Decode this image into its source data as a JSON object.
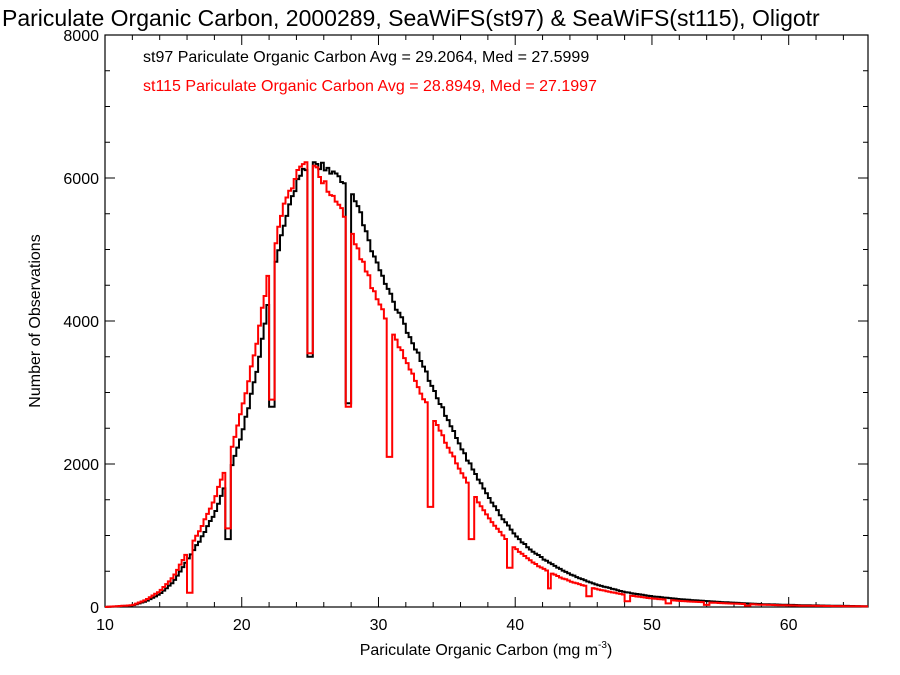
{
  "chart_data": {
    "type": "line",
    "title": "Pariculate Organic Carbon, 2000289, SeaWiFS(st97) & SeaWiFS(st115), Oligotr",
    "xlabel_main": "Pariculate Organic Carbon (mg m",
    "xlabel_exp": "-3",
    "xlabel_close": ")",
    "ylabel": "Number of Observations",
    "xlim": [
      10,
      65.8
    ],
    "ylim": [
      0,
      8000
    ],
    "x_ticks": [
      "10",
      "20",
      "30",
      "40",
      "50",
      "60"
    ],
    "y_ticks": [
      "0",
      "2000",
      "4000",
      "6000",
      "8000"
    ],
    "grid": false,
    "series": [
      {
        "name": "st97",
        "color": "#000000",
        "label": "st97 Pariculate Organic Carbon Avg = 29.2064, Med = 27.5999",
        "x": [
          10.0,
          12.0,
          13.0,
          14.0,
          15.0,
          16.0,
          17.0,
          18.0,
          19.0,
          20.0,
          21.0,
          22.0,
          23.0,
          24.0,
          25.0,
          25.5,
          26.0,
          26.5,
          27.0,
          27.5,
          28.0,
          28.5,
          29.0,
          29.5,
          30.0,
          31.0,
          32.0,
          33.0,
          34.0,
          35.0,
          36.0,
          37.0,
          38.0,
          39.0,
          40.0,
          41.0,
          42.0,
          43.0,
          44.0,
          45.0,
          46.0,
          47.0,
          48.0,
          50.0,
          52.0,
          55.0,
          58.0,
          61.0,
          65.8
        ],
        "y": [
          0,
          20,
          80,
          180,
          350,
          650,
          950,
          1300,
          1800,
          2400,
          3200,
          4300,
          5300,
          5900,
          6250,
          6200,
          6150,
          6100,
          6050,
          5950,
          5800,
          5600,
          5300,
          5000,
          4750,
          4300,
          3900,
          3500,
          3050,
          2650,
          2250,
          1880,
          1550,
          1260,
          1000,
          820,
          680,
          560,
          460,
          380,
          310,
          260,
          210,
          150,
          110,
          70,
          40,
          25,
          10
        ]
      },
      {
        "name": "st115",
        "color": "#ff0000",
        "label": "st115 Pariculate Organic Carbon Avg = 28.8949, Med = 27.1997",
        "x": [
          10.0,
          12.0,
          13.0,
          14.0,
          15.0,
          16.0,
          17.0,
          18.0,
          19.0,
          20.0,
          21.0,
          22.0,
          23.0,
          24.0,
          24.5,
          25.0,
          25.5,
          26.0,
          26.5,
          27.0,
          27.5,
          28.0,
          28.5,
          29.0,
          29.5,
          30.0,
          31.0,
          32.0,
          33.0,
          34.0,
          35.0,
          36.0,
          37.0,
          38.0,
          39.0,
          40.0,
          41.0,
          42.0,
          43.0,
          44.0,
          45.0,
          46.0,
          47.0,
          48.0,
          50.0,
          52.0,
          55.0,
          58.0,
          61.0,
          65.8
        ],
        "y": [
          0,
          25,
          100,
          220,
          420,
          760,
          1100,
          1500,
          2050,
          2750,
          3600,
          4700,
          5550,
          6050,
          6200,
          6200,
          6100,
          5950,
          5800,
          5650,
          5450,
          5250,
          5000,
          4750,
          4500,
          4250,
          3850,
          3450,
          3050,
          2650,
          2280,
          1900,
          1560,
          1270,
          1020,
          820,
          660,
          540,
          440,
          360,
          300,
          250,
          210,
          170,
          120,
          85,
          55,
          32,
          18,
          8
        ]
      }
    ],
    "dips": [
      {
        "series": "st97",
        "x": 22.2,
        "y": 2800
      },
      {
        "series": "st97",
        "x": 25.0,
        "y": 3500
      },
      {
        "series": "st97",
        "x": 27.8,
        "y": 2850
      },
      {
        "series": "st97",
        "x": 19.0,
        "y": 950
      },
      {
        "series": "st115",
        "x": 16.2,
        "y": 200
      },
      {
        "series": "st115",
        "x": 19.0,
        "y": 1100
      },
      {
        "series": "st115",
        "x": 22.2,
        "y": 2900
      },
      {
        "series": "st115",
        "x": 25.0,
        "y": 3550
      },
      {
        "series": "st115",
        "x": 27.8,
        "y": 2800
      },
      {
        "series": "st115",
        "x": 30.8,
        "y": 2100
      },
      {
        "series": "st115",
        "x": 33.8,
        "y": 1400
      },
      {
        "series": "st115",
        "x": 36.8,
        "y": 950
      },
      {
        "series": "st115",
        "x": 39.6,
        "y": 550
      },
      {
        "series": "st115",
        "x": 42.5,
        "y": 260
      },
      {
        "series": "st115",
        "x": 45.4,
        "y": 150
      },
      {
        "series": "st115",
        "x": 48.2,
        "y": 80
      },
      {
        "series": "st115",
        "x": 51.2,
        "y": 50
      },
      {
        "series": "st115",
        "x": 54.0,
        "y": 30
      },
      {
        "series": "st115",
        "x": 57.0,
        "y": 20
      }
    ]
  }
}
